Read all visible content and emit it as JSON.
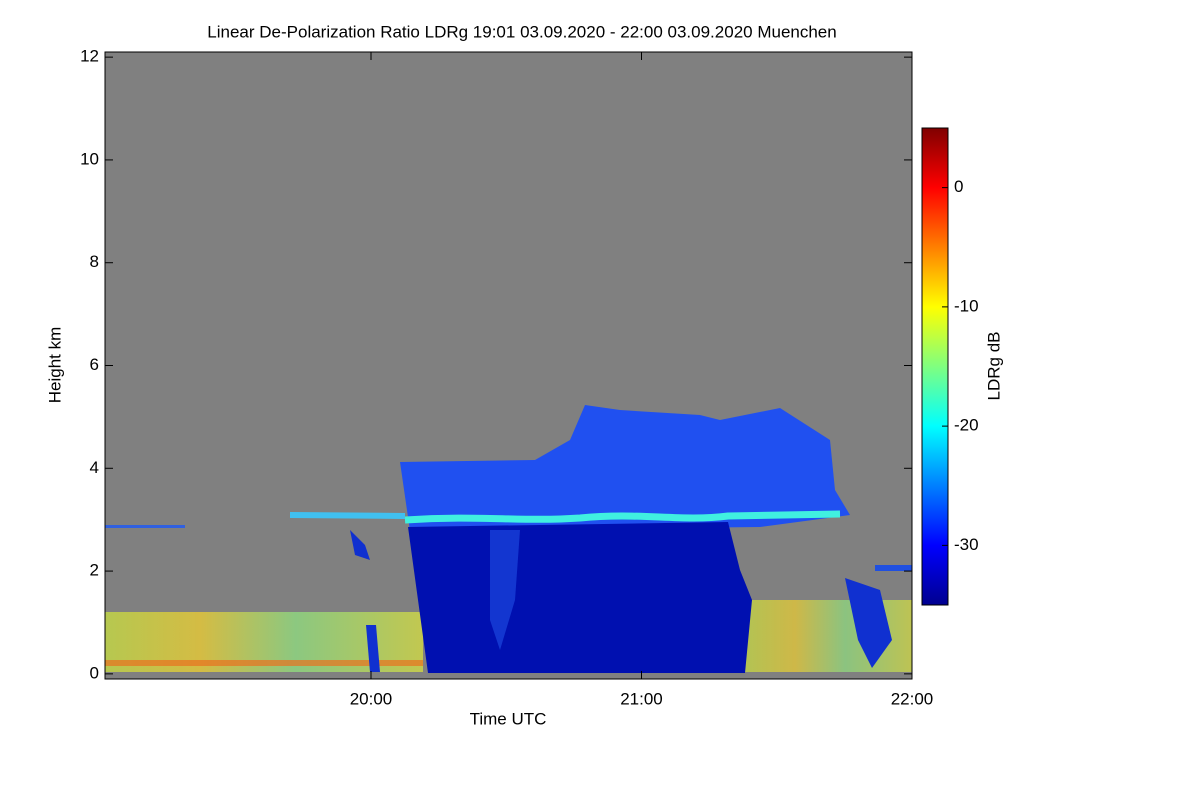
{
  "chart_data": {
    "type": "heatmap",
    "title": "Linear De-Polarization Ratio LDRg   19:01 03.09.2020 - 22:00 03.09.2020 Muenchen",
    "xlabel": "Time UTC",
    "ylabel": "Height km",
    "xlim": [
      19.0167,
      22.0
    ],
    "xticks": [
      {
        "value": 20,
        "label": "20:00"
      },
      {
        "value": 21,
        "label": "21:00"
      },
      {
        "value": 22,
        "label": "22:00"
      }
    ],
    "ylim": [
      -0.1,
      12.1
    ],
    "yticks": [
      0,
      2,
      4,
      6,
      8,
      10,
      12
    ],
    "colorbar": {
      "label": "LDRg dB",
      "lim": [
        -35,
        5
      ],
      "ticks": [
        0,
        -10,
        -20,
        -30
      ],
      "colormap": "jet"
    }
  }
}
